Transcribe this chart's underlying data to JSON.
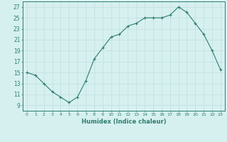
{
  "x": [
    0,
    1,
    2,
    3,
    4,
    5,
    6,
    7,
    8,
    9,
    10,
    11,
    12,
    13,
    14,
    15,
    16,
    17,
    18,
    19,
    20,
    21,
    22,
    23
  ],
  "y": [
    15,
    14.5,
    13,
    11.5,
    10.5,
    9.5,
    10.5,
    13.5,
    17.5,
    19.5,
    21.5,
    22,
    23.5,
    24,
    25,
    25,
    25,
    25.5,
    27,
    26,
    24,
    22,
    19,
    15.5
  ],
  "xlabel": "Humidex (Indice chaleur)",
  "xlim": [
    -0.5,
    23.5
  ],
  "ylim": [
    8,
    28
  ],
  "yticks": [
    9,
    11,
    13,
    15,
    17,
    19,
    21,
    23,
    25,
    27
  ],
  "xtick_labels": [
    "0",
    "1",
    "2",
    "3",
    "4",
    "5",
    "6",
    "7",
    "8",
    "9",
    "10",
    "11",
    "12",
    "13",
    "14",
    "15",
    "16",
    "17",
    "18",
    "19",
    "20",
    "21",
    "22",
    "23"
  ],
  "line_color": "#2e7d6e",
  "marker": "+",
  "bg_color": "#d6f0f0",
  "grid_color": "#c0dede"
}
